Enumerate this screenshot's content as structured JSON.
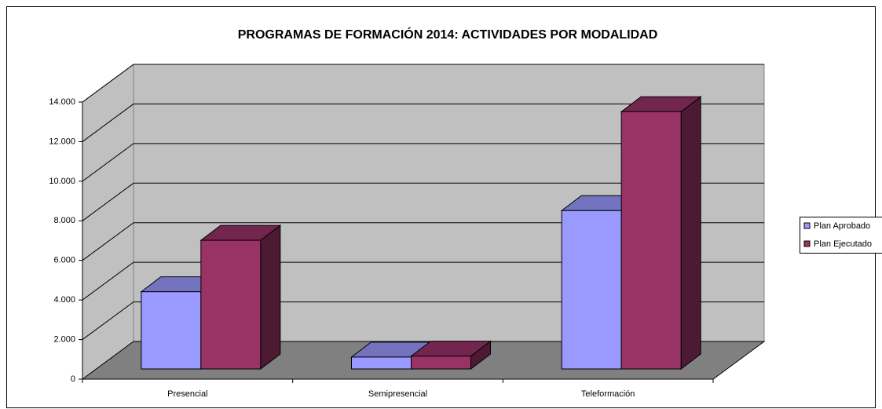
{
  "chart_data": {
    "type": "bar3d",
    "title": "PROGRAMAS DE FORMACIÓN 2014: ACTIVIDADES POR MODALIDAD",
    "categories": [
      "Presencial",
      "Semipresencial",
      "Teleformación"
    ],
    "series": [
      {
        "name": "Plan Aprobado",
        "color": "#9999ff",
        "values": [
          3900,
          600,
          8000
        ]
      },
      {
        "name": "Plan Ejecutado",
        "color": "#993366",
        "values": [
          6500,
          650,
          13000
        ]
      }
    ],
    "ylim": [
      0,
      14000
    ],
    "yticks": [
      0,
      {
        "value": 2000,
        "label": "2.000"
      },
      {
        "value": 4000,
        "label": "4.000"
      },
      {
        "value": 6000,
        "label": "6.000"
      },
      {
        "value": 8000,
        "label": "8.000"
      },
      {
        "value": 10000,
        "label": "10.000"
      },
      {
        "value": 12000,
        "label": "12.000"
      },
      {
        "value": 14000,
        "label": "14.000"
      }
    ],
    "grid": true,
    "legend": "right"
  }
}
